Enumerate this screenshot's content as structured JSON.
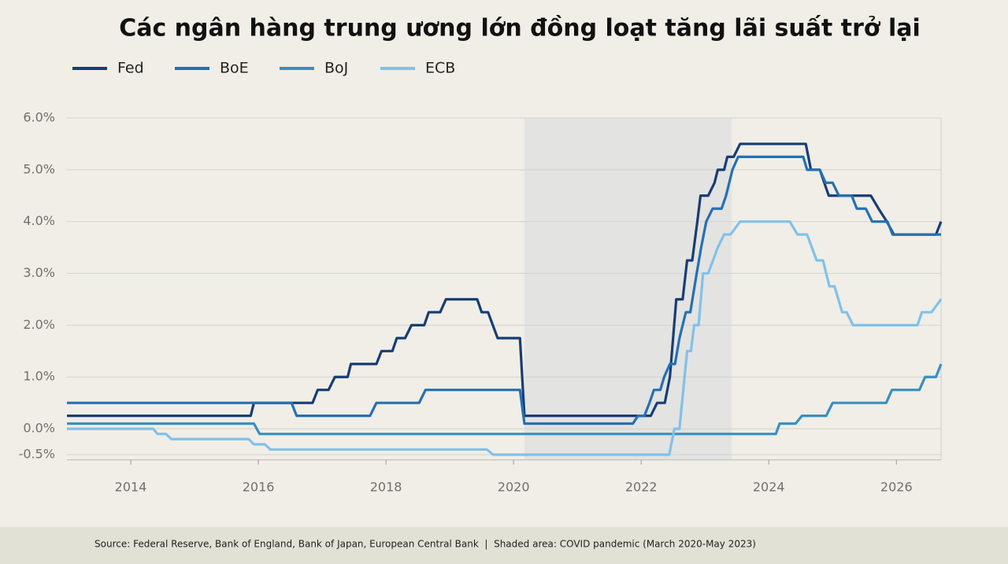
{
  "chart_data": {
    "type": "line",
    "title": "Các ngân hàng trung ương lớn đồng loạt tăng lãi suất trở lại",
    "source": "Source: Federal Reserve, Bank of England, Bank of Japan, European Central Bank  |  Shaded area: COVID pandemic (March 2020-May 2023)",
    "xlim": [
      2013,
      2026.7
    ],
    "xticks": [
      2014,
      2016,
      2018,
      2020,
      2022,
      2024,
      2026
    ],
    "ylim": [
      -0.6,
      6.0
    ],
    "yticks": [
      {
        "value": -0.5,
        "label": "-0.5%"
      },
      {
        "value": 0,
        "label": "0.0%"
      },
      {
        "value": 1,
        "label": "1.0%"
      },
      {
        "value": 2,
        "label": "2.0%"
      },
      {
        "value": 3,
        "label": "3.0%"
      },
      {
        "value": 4,
        "label": "4.0%"
      },
      {
        "value": 5,
        "label": "5.0%"
      },
      {
        "value": 6,
        "label": "6.0%"
      }
    ],
    "grid": true,
    "legend": "top-left",
    "shaded_area": [
      2020.17,
      2023.42
    ],
    "series": [
      {
        "name": "Fed",
        "color": "#173d75",
        "x": [
          2013,
          2015.88,
          2015.93,
          2016.85,
          2016.93,
          2017.1,
          2017.2,
          2017.4,
          2017.45,
          2017.85,
          2017.93,
          2018.1,
          2018.17,
          2018.3,
          2018.4,
          2018.6,
          2018.67,
          2018.85,
          2018.94,
          2019.43,
          2019.5,
          2019.6,
          2019.75,
          2020.1,
          2020.17,
          2022.15,
          2022.25,
          2022.37,
          2022.45,
          2022.55,
          2022.65,
          2022.72,
          2022.8,
          2022.88,
          2022.93,
          2023.05,
          2023.15,
          2023.2,
          2023.3,
          2023.35,
          2023.45,
          2023.55,
          2024.58,
          2024.66,
          2024.8,
          2024.94,
          2025.6,
          2025.72,
          2025.85,
          2025.96,
          2026.62,
          2026.7
        ],
        "values": [
          0.25,
          0.25,
          0.5,
          0.5,
          0.75,
          0.75,
          1.0,
          1.0,
          1.25,
          1.25,
          1.5,
          1.5,
          1.75,
          1.75,
          2.0,
          2.0,
          2.25,
          2.25,
          2.5,
          2.5,
          2.25,
          2.25,
          1.75,
          1.75,
          0.25,
          0.25,
          0.5,
          0.5,
          1.0,
          2.5,
          2.5,
          3.25,
          3.25,
          4.0,
          4.5,
          4.5,
          4.75,
          5.0,
          5.0,
          5.25,
          5.25,
          5.5,
          5.5,
          5.0,
          5.0,
          4.5,
          4.5,
          4.25,
          4.0,
          3.75,
          3.75,
          4.0
        ]
      },
      {
        "name": "BoE",
        "color": "#2470b3",
        "x": [
          2013,
          2016.52,
          2016.6,
          2017.75,
          2017.85,
          2018.52,
          2018.62,
          2020.1,
          2020.17,
          2021.87,
          2021.95,
          2022.05,
          2022.13,
          2022.2,
          2022.3,
          2022.36,
          2022.45,
          2022.53,
          2022.6,
          2022.7,
          2022.77,
          2022.87,
          2022.94,
          2023.02,
          2023.12,
          2023.26,
          2023.33,
          2023.43,
          2023.52,
          2024.54,
          2024.6,
          2024.8,
          2024.89,
          2025.0,
          2025.1,
          2025.3,
          2025.38,
          2025.52,
          2025.62,
          2025.86,
          2025.94,
          2026.7
        ],
        "values": [
          0.5,
          0.5,
          0.25,
          0.25,
          0.5,
          0.5,
          0.75,
          0.75,
          0.1,
          0.1,
          0.25,
          0.25,
          0.5,
          0.75,
          0.75,
          1.0,
          1.25,
          1.25,
          1.75,
          2.25,
          2.25,
          3.0,
          3.5,
          4.0,
          4.25,
          4.25,
          4.5,
          5.0,
          5.25,
          5.25,
          5.0,
          5.0,
          4.75,
          4.75,
          4.5,
          4.5,
          4.25,
          4.25,
          4.0,
          4.0,
          3.75,
          3.75
        ]
      },
      {
        "name": "BoJ",
        "color": "#3a8fc0",
        "x": [
          2013,
          2015.93,
          2016.02,
          2024.11,
          2024.17,
          2024.42,
          2024.52,
          2024.9,
          2025.0,
          2025.84,
          2025.93,
          2026.36,
          2026.45,
          2026.62,
          2026.7
        ],
        "values": [
          0.1,
          0.1,
          -0.1,
          -0.1,
          0.1,
          0.1,
          0.25,
          0.25,
          0.5,
          0.5,
          0.75,
          0.75,
          1.0,
          1.0,
          1.25
        ]
      },
      {
        "name": "ECB",
        "color": "#80c1ea",
        "x": [
          2013,
          2014.35,
          2014.42,
          2014.55,
          2014.64,
          2015.85,
          2015.93,
          2016.1,
          2016.19,
          2019.58,
          2019.68,
          2022.44,
          2022.52,
          2022.6,
          2022.72,
          2022.78,
          2022.83,
          2022.9,
          2022.97,
          2023.05,
          2023.2,
          2023.3,
          2023.4,
          2023.55,
          2024.33,
          2024.45,
          2024.6,
          2024.75,
          2024.85,
          2024.95,
          2025.03,
          2025.15,
          2025.22,
          2025.32,
          2026.33,
          2026.4,
          2026.55,
          2026.7
        ],
        "values": [
          0.0,
          0.0,
          -0.1,
          -0.1,
          -0.2,
          -0.2,
          -0.3,
          -0.3,
          -0.4,
          -0.4,
          -0.5,
          -0.5,
          0.0,
          0.0,
          1.5,
          1.5,
          2.0,
          2.0,
          3.0,
          3.0,
          3.5,
          3.75,
          3.75,
          4.0,
          4.0,
          3.75,
          3.75,
          3.25,
          3.25,
          2.75,
          2.75,
          2.25,
          2.25,
          2.0,
          2.0,
          2.25,
          2.25,
          2.5
        ]
      }
    ]
  }
}
